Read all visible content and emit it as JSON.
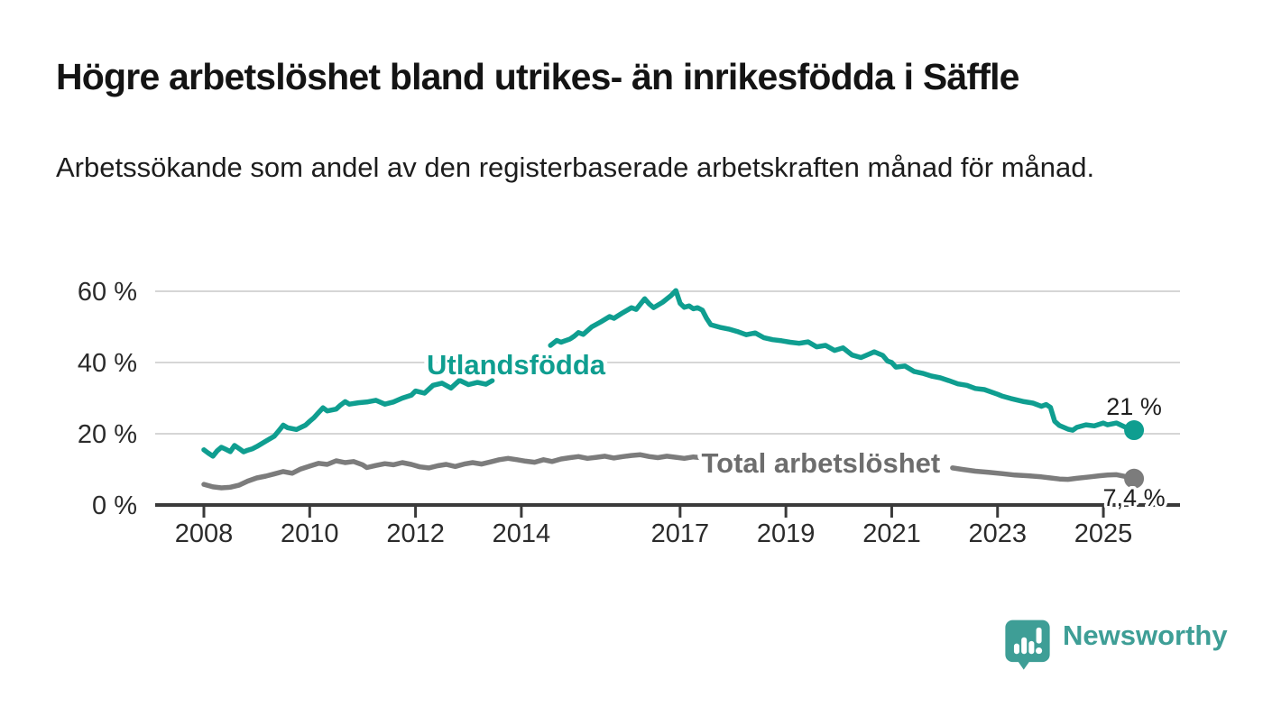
{
  "page": {
    "title": "Högre arbetslöshet bland utrikes- än inrikesfödda i Säffle",
    "subtitle": "Arbetssökande som andel av den registerbaserade arbetskraften månad för månad."
  },
  "branding": {
    "name": "Newsworthy",
    "color": "#3E9E96"
  },
  "colors": {
    "teal": "#0F9E90",
    "gray_line": "#7C7C7C",
    "gray_label": "#6D6D6D",
    "grid": "#D6D6D6",
    "axis": "#3A3A3A",
    "axis_text": "#2B2B2B",
    "value_label": "#1E1E1E"
  },
  "chart_data": {
    "type": "line",
    "title": "Högre arbetslöshet bland utrikes- än inrikesfödda i Säffle",
    "subtitle": "Arbetssökande som andel av den registerbaserade arbetskraften månad för månad.",
    "xlabel": "",
    "ylabel": "",
    "grid": true,
    "legend_position": "inline-labels",
    "x_axis": {
      "ticks": [
        2008,
        2010,
        2012,
        2014,
        2017,
        2019,
        2021,
        2023,
        2025
      ],
      "range": [
        2007.1,
        2026.4
      ]
    },
    "y_axis": {
      "tick_values": [
        0,
        20,
        40,
        60
      ],
      "tick_labels": [
        "0 %",
        "20 %",
        "40 %",
        "60 %"
      ],
      "ylim": [
        0,
        63
      ]
    },
    "series": [
      {
        "id": "utlandsfodda",
        "name": "Utlandsfödda",
        "color": "#0F9E90",
        "label_color": "#0F9E90",
        "end_label": "21 %",
        "end_value": 21,
        "end_label_below": false,
        "label_at": {
          "x": 2013.9,
          "y": 39.5
        },
        "segments": [
          [
            [
              2008.0,
              15.5
            ],
            [
              2008.08,
              14.6
            ],
            [
              2008.17,
              13.7
            ],
            [
              2008.25,
              15.2
            ],
            [
              2008.33,
              16.2
            ],
            [
              2008.42,
              15.6
            ],
            [
              2008.5,
              15.0
            ],
            [
              2008.58,
              16.7
            ],
            [
              2008.67,
              15.8
            ],
            [
              2008.75,
              14.9
            ],
            [
              2008.83,
              15.4
            ],
            [
              2008.92,
              15.8
            ],
            [
              2009.0,
              16.4
            ],
            [
              2009.17,
              17.9
            ],
            [
              2009.33,
              19.3
            ],
            [
              2009.42,
              20.9
            ],
            [
              2009.5,
              22.4
            ],
            [
              2009.58,
              21.7
            ],
            [
              2009.75,
              21.2
            ],
            [
              2009.92,
              22.4
            ],
            [
              2010.0,
              23.5
            ],
            [
              2010.08,
              24.5
            ],
            [
              2010.17,
              26.0
            ],
            [
              2010.25,
              27.3
            ],
            [
              2010.33,
              26.4
            ],
            [
              2010.5,
              26.9
            ],
            [
              2010.58,
              28.0
            ],
            [
              2010.67,
              29.0
            ],
            [
              2010.75,
              28.3
            ],
            [
              2010.92,
              28.7
            ],
            [
              2011.08,
              28.9
            ],
            [
              2011.25,
              29.4
            ],
            [
              2011.42,
              28.3
            ],
            [
              2011.58,
              28.9
            ],
            [
              2011.75,
              30.0
            ],
            [
              2011.92,
              30.8
            ],
            [
              2012.0,
              32.0
            ],
            [
              2012.17,
              31.4
            ],
            [
              2012.33,
              33.6
            ],
            [
              2012.5,
              34.2
            ],
            [
              2012.67,
              32.8
            ],
            [
              2012.83,
              35.0
            ],
            [
              2013.0,
              33.8
            ],
            [
              2013.17,
              34.4
            ],
            [
              2013.33,
              33.9
            ],
            [
              2013.45,
              34.9
            ]
          ],
          [
            [
              2014.55,
              44.8
            ],
            [
              2014.67,
              46.2
            ],
            [
              2014.75,
              45.7
            ],
            [
              2014.92,
              46.6
            ],
            [
              2015.0,
              47.4
            ],
            [
              2015.08,
              48.4
            ],
            [
              2015.17,
              47.9
            ],
            [
              2015.33,
              50.0
            ],
            [
              2015.5,
              51.4
            ],
            [
              2015.67,
              52.9
            ],
            [
              2015.75,
              52.4
            ],
            [
              2015.92,
              54.0
            ],
            [
              2016.08,
              55.4
            ],
            [
              2016.17,
              54.9
            ],
            [
              2016.33,
              57.9
            ],
            [
              2016.42,
              56.4
            ],
            [
              2016.5,
              55.4
            ],
            [
              2016.67,
              56.9
            ],
            [
              2016.83,
              58.8
            ],
            [
              2016.92,
              60.2
            ],
            [
              2017.0,
              56.6
            ],
            [
              2017.08,
              55.5
            ],
            [
              2017.17,
              55.9
            ],
            [
              2017.25,
              55.1
            ],
            [
              2017.33,
              55.4
            ],
            [
              2017.42,
              54.7
            ],
            [
              2017.5,
              52.4
            ],
            [
              2017.58,
              50.6
            ],
            [
              2017.75,
              49.9
            ],
            [
              2017.92,
              49.4
            ],
            [
              2018.08,
              48.7
            ],
            [
              2018.25,
              47.8
            ],
            [
              2018.42,
              48.3
            ],
            [
              2018.58,
              47.0
            ],
            [
              2018.75,
              46.4
            ],
            [
              2018.92,
              46.1
            ],
            [
              2019.08,
              45.7
            ],
            [
              2019.25,
              45.4
            ],
            [
              2019.42,
              45.8
            ],
            [
              2019.58,
              44.4
            ],
            [
              2019.75,
              44.8
            ],
            [
              2019.92,
              43.4
            ],
            [
              2020.08,
              44.1
            ],
            [
              2020.25,
              42.1
            ],
            [
              2020.42,
              41.4
            ],
            [
              2020.58,
              42.4
            ],
            [
              2020.67,
              43.0
            ],
            [
              2020.83,
              42.0
            ],
            [
              2020.92,
              40.4
            ],
            [
              2021.0,
              40.0
            ],
            [
              2021.08,
              38.7
            ],
            [
              2021.25,
              39.0
            ],
            [
              2021.42,
              37.5
            ],
            [
              2021.58,
              37.0
            ],
            [
              2021.75,
              36.2
            ],
            [
              2021.92,
              35.7
            ],
            [
              2022.08,
              34.9
            ],
            [
              2022.25,
              34.0
            ],
            [
              2022.42,
              33.6
            ],
            [
              2022.58,
              32.7
            ],
            [
              2022.75,
              32.4
            ],
            [
              2023.0,
              31.1
            ],
            [
              2023.08,
              30.6
            ],
            [
              2023.25,
              29.9
            ],
            [
              2023.5,
              29.0
            ],
            [
              2023.67,
              28.6
            ],
            [
              2023.83,
              27.7
            ],
            [
              2023.92,
              28.2
            ],
            [
              2024.0,
              27.4
            ],
            [
              2024.08,
              23.5
            ],
            [
              2024.17,
              22.3
            ],
            [
              2024.33,
              21.3
            ],
            [
              2024.42,
              21.0
            ],
            [
              2024.5,
              21.8
            ],
            [
              2024.67,
              22.5
            ],
            [
              2024.83,
              22.2
            ],
            [
              2025.0,
              23.0
            ],
            [
              2025.08,
              22.5
            ],
            [
              2025.25,
              23.0
            ],
            [
              2025.42,
              21.8
            ],
            [
              2025.5,
              20.6
            ],
            [
              2025.58,
              21.0
            ]
          ]
        ]
      },
      {
        "id": "total",
        "name": "Total arbetslöshet",
        "color": "#7C7C7C",
        "label_color": "#6D6D6D",
        "end_label": "7,4 %",
        "end_value": 7.4,
        "end_label_below": true,
        "label_at": {
          "x": 2019.66,
          "y": 11.9
        },
        "segments": [
          [
            [
              2008.0,
              5.8
            ],
            [
              2008.17,
              5.1
            ],
            [
              2008.33,
              4.8
            ],
            [
              2008.5,
              5.0
            ],
            [
              2008.67,
              5.6
            ],
            [
              2008.83,
              6.7
            ],
            [
              2009.0,
              7.6
            ],
            [
              2009.17,
              8.1
            ],
            [
              2009.33,
              8.7
            ],
            [
              2009.5,
              9.4
            ],
            [
              2009.67,
              8.9
            ],
            [
              2009.83,
              10.1
            ],
            [
              2010.0,
              10.9
            ],
            [
              2010.17,
              11.7
            ],
            [
              2010.33,
              11.4
            ],
            [
              2010.5,
              12.4
            ],
            [
              2010.67,
              11.9
            ],
            [
              2010.83,
              12.2
            ],
            [
              2011.0,
              11.3
            ],
            [
              2011.08,
              10.5
            ],
            [
              2011.25,
              11.1
            ],
            [
              2011.42,
              11.6
            ],
            [
              2011.58,
              11.3
            ],
            [
              2011.75,
              11.9
            ],
            [
              2011.92,
              11.4
            ],
            [
              2012.08,
              10.7
            ],
            [
              2012.25,
              10.4
            ],
            [
              2012.42,
              11.0
            ],
            [
              2012.58,
              11.4
            ],
            [
              2012.75,
              10.8
            ],
            [
              2012.92,
              11.5
            ],
            [
              2013.08,
              11.9
            ],
            [
              2013.25,
              11.5
            ],
            [
              2013.42,
              12.1
            ],
            [
              2013.58,
              12.7
            ],
            [
              2013.75,
              13.1
            ],
            [
              2013.92,
              12.7
            ],
            [
              2014.08,
              12.3
            ],
            [
              2014.25,
              12.0
            ],
            [
              2014.42,
              12.7
            ],
            [
              2014.58,
              12.2
            ],
            [
              2014.75,
              12.9
            ],
            [
              2014.92,
              13.3
            ],
            [
              2015.08,
              13.6
            ],
            [
              2015.25,
              13.1
            ],
            [
              2015.42,
              13.4
            ],
            [
              2015.58,
              13.7
            ],
            [
              2015.75,
              13.2
            ],
            [
              2015.92,
              13.6
            ],
            [
              2016.08,
              13.9
            ],
            [
              2016.25,
              14.1
            ],
            [
              2016.42,
              13.6
            ],
            [
              2016.58,
              13.3
            ],
            [
              2016.75,
              13.7
            ],
            [
              2016.92,
              13.4
            ],
            [
              2017.08,
              13.1
            ],
            [
              2017.25,
              13.5
            ],
            [
              2017.4,
              13.3
            ]
          ],
          [
            [
              2022.15,
              10.4
            ],
            [
              2022.33,
              10.0
            ],
            [
              2022.58,
              9.5
            ],
            [
              2022.83,
              9.2
            ],
            [
              2023.08,
              8.8
            ],
            [
              2023.33,
              8.4
            ],
            [
              2023.58,
              8.2
            ],
            [
              2023.83,
              7.9
            ],
            [
              2024.0,
              7.6
            ],
            [
              2024.17,
              7.3
            ],
            [
              2024.33,
              7.2
            ],
            [
              2024.5,
              7.5
            ],
            [
              2024.75,
              7.9
            ],
            [
              2024.92,
              8.2
            ],
            [
              2025.08,
              8.4
            ],
            [
              2025.25,
              8.5
            ],
            [
              2025.42,
              8.0
            ],
            [
              2025.58,
              7.4
            ]
          ]
        ]
      }
    ]
  }
}
